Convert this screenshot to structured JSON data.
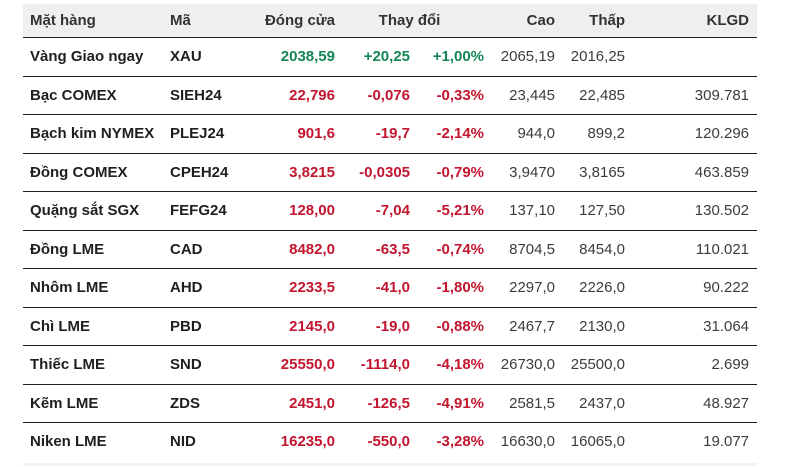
{
  "colors": {
    "up": "#148554",
    "down": "#c2152e",
    "header_bg": "#f0efef",
    "row_border": "#1f1f1f",
    "text_dark": "#1f1f1f"
  },
  "table": {
    "header": {
      "name": "Mặt hàng",
      "code": "Mã",
      "close": "Đóng cửa",
      "change": "Thay đổi",
      "high": "Cao",
      "low": "Thấp",
      "volume": "KLGD"
    },
    "rows": [
      {
        "name": "Vàng Giao ngay",
        "code": "XAU",
        "close": "2038,59",
        "change": "+20,25",
        "change_pct": "+1,00%",
        "high": "2065,19",
        "low": "2016,25",
        "volume": "",
        "trend": "up"
      },
      {
        "name": "Bạc COMEX",
        "code": "SIEH24",
        "close": "22,796",
        "change": "-0,076",
        "change_pct": "-0,33%",
        "high": "23,445",
        "low": "22,485",
        "volume": "309.781",
        "trend": "down"
      },
      {
        "name": "Bạch kim NYMEX",
        "code": "PLEJ24",
        "close": "901,6",
        "change": "-19,7",
        "change_pct": "-2,14%",
        "high": "944,0",
        "low": "899,2",
        "volume": "120.296",
        "trend": "down"
      },
      {
        "name": "Đồng COMEX",
        "code": "CPEH24",
        "close": "3,8215",
        "change": "-0,0305",
        "change_pct": "-0,79%",
        "high": "3,9470",
        "low": "3,8165",
        "volume": "463.859",
        "trend": "down"
      },
      {
        "name": "Quặng sắt SGX",
        "code": "FEFG24",
        "close": "128,00",
        "change": "-7,04",
        "change_pct": "-5,21%",
        "high": "137,10",
        "low": "127,50",
        "volume": "130.502",
        "trend": "down"
      },
      {
        "name": "Đồng LME",
        "code": "CAD",
        "close": "8482,0",
        "change": "-63,5",
        "change_pct": "-0,74%",
        "high": "8704,5",
        "low": "8454,0",
        "volume": "110.021",
        "trend": "down"
      },
      {
        "name": "Nhôm LME",
        "code": "AHD",
        "close": "2233,5",
        "change": "-41,0",
        "change_pct": "-1,80%",
        "high": "2297,0",
        "low": "2226,0",
        "volume": "90.222",
        "trend": "down"
      },
      {
        "name": "Chì LME",
        "code": "PBD",
        "close": "2145,0",
        "change": "-19,0",
        "change_pct": "-0,88%",
        "high": "2467,7",
        "low": "2130,0",
        "volume": "31.064",
        "trend": "down"
      },
      {
        "name": "Thiếc LME",
        "code": "SND",
        "close": "25550,0",
        "change": "-1114,0",
        "change_pct": "-4,18%",
        "high": "26730,0",
        "low": "25500,0",
        "volume": "2.699",
        "trend": "down"
      },
      {
        "name": "Kẽm LME",
        "code": "ZDS",
        "close": "2451,0",
        "change": "-126,5",
        "change_pct": "-4,91%",
        "high": "2581,5",
        "low": "2437,0",
        "volume": "48.927",
        "trend": "down"
      },
      {
        "name": "Niken LME",
        "code": "NID",
        "close": "16235,0",
        "change": "-550,0",
        "change_pct": "-3,28%",
        "high": "16630,0",
        "low": "16065,0",
        "volume": "19.077",
        "trend": "down"
      }
    ]
  }
}
